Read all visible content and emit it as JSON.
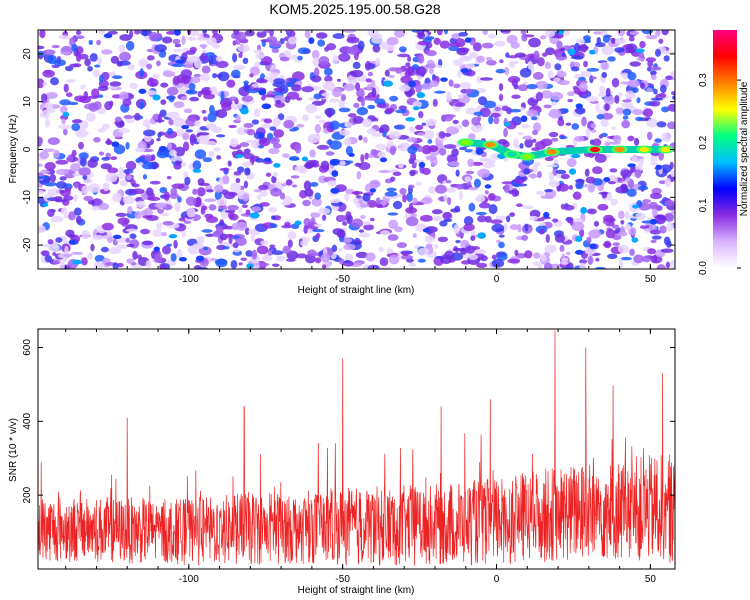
{
  "title": "KOM5.2025.195.00.58.G28",
  "chart_data": [
    {
      "type": "heatmap",
      "xlabel": "Height of straight line (km)",
      "ylabel": "Frequency (Hz)",
      "xlim": [
        -149,
        58
      ],
      "ylim": [
        -25,
        25
      ],
      "x_ticks": [
        -100,
        -50,
        0,
        50
      ],
      "x_tick_labels": [
        "-100",
        "-50",
        "0",
        "50"
      ],
      "y_ticks": [
        -20,
        -10,
        0,
        10,
        20
      ],
      "y_tick_labels": [
        "-20",
        "-10",
        "0",
        "10",
        "20"
      ],
      "colorbar": {
        "label": "Normalized spectral amplitude",
        "range": [
          0.0,
          0.38
        ],
        "ticks": [
          0.0,
          0.1,
          0.2,
          0.3
        ],
        "tick_labels": [
          "0.0",
          "0.1",
          "0.2",
          "0.3"
        ],
        "colors": [
          "#ffffff",
          "#d9b3ff",
          "#8a2be2",
          "#0000ff",
          "#00bfff",
          "#00ff80",
          "#ffff00",
          "#ff8000",
          "#ff0000",
          "#ff0080"
        ]
      },
      "signal_track": {
        "description_points": [
          {
            "x": -10,
            "y": 1.5,
            "amp": 0.22
          },
          {
            "x": -2,
            "y": 1.0,
            "amp": 0.3
          },
          {
            "x": 5,
            "y": -1.0,
            "amp": 0.18
          },
          {
            "x": 10,
            "y": -1.5,
            "amp": 0.22
          },
          {
            "x": 18,
            "y": -0.5,
            "amp": 0.33
          },
          {
            "x": 32,
            "y": 0.0,
            "amp": 0.35
          },
          {
            "x": 40,
            "y": 0.0,
            "amp": 0.32
          },
          {
            "x": 48,
            "y": 0.0,
            "amp": 0.28
          },
          {
            "x": 55,
            "y": 0.0,
            "amp": 0.25
          }
        ]
      }
    },
    {
      "type": "line",
      "xlabel": "Height of straight line (km)",
      "ylabel": "SNR (10 * v/v)",
      "xlim": [
        -149,
        58
      ],
      "ylim": [
        0,
        650
      ],
      "x_ticks": [
        -100,
        -50,
        0,
        50
      ],
      "x_tick_labels": [
        "-100",
        "-50",
        "0",
        "50"
      ],
      "y_ticks": [
        200,
        400,
        600
      ],
      "y_tick_labels": [
        "200",
        "400",
        "600"
      ],
      "line_color": "#ee2222",
      "envelope": {
        "x": [
          -149,
          -120,
          -100,
          -80,
          -60,
          -40,
          -20,
          0,
          20,
          40,
          58
        ],
        "base": [
          110,
          105,
          100,
          110,
          115,
          115,
          120,
          130,
          150,
          160,
          165
        ],
        "amplitude": [
          90,
          90,
          90,
          100,
          100,
          110,
          110,
          120,
          130,
          140,
          150
        ]
      },
      "peaks": [
        {
          "x": -120,
          "y": 410
        },
        {
          "x": -82,
          "y": 440
        },
        {
          "x": -50,
          "y": 570
        },
        {
          "x": -18,
          "y": 440
        },
        {
          "x": -2,
          "y": 460
        },
        {
          "x": 19,
          "y": 645
        },
        {
          "x": 29,
          "y": 600
        },
        {
          "x": 54,
          "y": 530
        }
      ]
    }
  ]
}
